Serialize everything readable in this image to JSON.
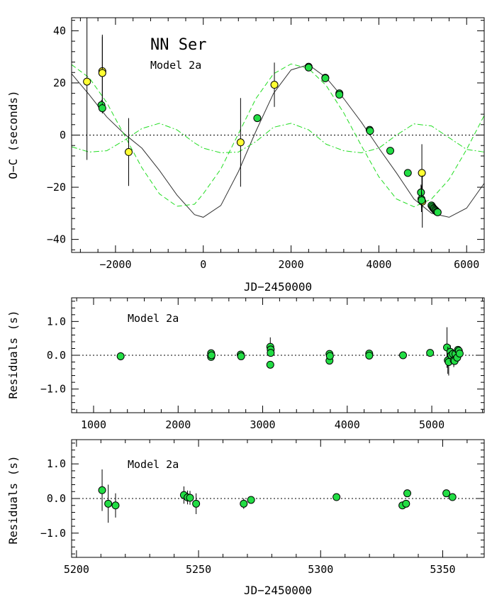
{
  "chart_data": [
    {
      "type": "scatter",
      "annotations": [
        "NN Ser",
        "Model 2a"
      ],
      "xlabel": "JD−2450000",
      "ylabel": "O−C (seconds)",
      "xlim": [
        -3000,
        6400
      ],
      "ylim": [
        -45,
        45
      ],
      "xticks": [
        -2000,
        0,
        2000,
        4000,
        6000
      ],
      "yticks": [
        -40,
        -20,
        0,
        20,
        40
      ],
      "zero_line": "dotted",
      "colors": {
        "green": "#22dd44",
        "yellow": "#ffff33",
        "fit": "#333333",
        "component": "#22dd22"
      },
      "series": [
        {
          "marker": "yellow-circle",
          "x": [
            -2650,
            -2300,
            -2300,
            -1700,
            850,
            1620,
            4980,
            4990
          ],
          "y": [
            20.5,
            24.5,
            23.8,
            -6.5,
            -2.8,
            19.3,
            -14.5,
            -25.5
          ],
          "err": [
            30,
            14,
            14,
            13,
            17,
            8.5,
            11,
            10
          ]
        },
        {
          "marker": "green-circle",
          "x": [
            -2320,
            -2300,
            1230,
            2400,
            2400,
            2780,
            2780,
            3100,
            3100,
            3790,
            3800,
            4260,
            4660,
            4960,
            4970,
            4975,
            5200,
            5220,
            5240,
            5260,
            5280,
            5300,
            5320,
            5340
          ],
          "y": [
            11.5,
            10.3,
            6.5,
            26.2,
            25.9,
            22.0,
            21.8,
            16.0,
            15.5,
            2.0,
            1.6,
            -6.0,
            -14.5,
            -22.0,
            -24.5,
            -25.0,
            -27.0,
            -27.5,
            -28.0,
            -28.3,
            -28.7,
            -29.0,
            -29.4,
            -29.6
          ],
          "err": [
            2,
            2,
            1,
            1,
            1,
            1,
            1,
            1,
            1,
            1,
            1,
            1,
            1,
            3,
            5,
            3,
            1,
            1,
            1,
            1,
            1,
            1,
            1,
            1
          ]
        }
      ],
      "model_curves": [
        {
          "style": "solid",
          "meaning": "total fit",
          "x": [
            -3000,
            -2600,
            -2200,
            -1800,
            -1400,
            -1000,
            -600,
            -200,
            0,
            400,
            800,
            1200,
            1600,
            2000,
            2400,
            2800,
            3200,
            3600,
            4000,
            4400,
            4800,
            5200,
            5600,
            6000,
            6400
          ],
          "y": [
            23.5,
            15.5,
            7.0,
            0.5,
            -5.0,
            -13.5,
            -23.0,
            -30.5,
            -31.5,
            -27.0,
            -14.0,
            1.5,
            16.0,
            25.0,
            27.0,
            22.0,
            14.0,
            5.0,
            -5.0,
            -14.5,
            -24.5,
            -30.0,
            -31.5,
            -28.0,
            -18.5
          ]
        },
        {
          "style": "dashed",
          "meaning": "component 1",
          "x": [
            -3000,
            -2600,
            -2200,
            -1800,
            -1400,
            -1000,
            -600,
            -200,
            0,
            400,
            800,
            1200,
            1600,
            2000,
            2400,
            2800,
            3200,
            3600,
            4000,
            4400,
            4800,
            5200,
            5600,
            6000,
            6400
          ],
          "y": [
            27.0,
            22.0,
            12.5,
            0.0,
            -12.5,
            -22.5,
            -27.3,
            -26.5,
            -22.5,
            -13.0,
            0.5,
            14.0,
            23.5,
            27.3,
            25.5,
            19.0,
            8.5,
            -4.0,
            -16.0,
            -24.5,
            -27.5,
            -24.5,
            -17.0,
            -5.5,
            7.5
          ]
        },
        {
          "style": "dash-dot",
          "meaning": "component 2",
          "x": [
            -3000,
            -2600,
            -2200,
            -1800,
            -1400,
            -1000,
            -600,
            -200,
            0,
            400,
            800,
            1200,
            1600,
            2000,
            2400,
            2800,
            3200,
            3600,
            4000,
            4400,
            4800,
            5200,
            5600,
            6000,
            6400
          ],
          "y": [
            -4.5,
            -6.5,
            -6.0,
            -2.0,
            2.5,
            4.5,
            2.0,
            -3.0,
            -5.0,
            -6.8,
            -6.5,
            -2.5,
            3.0,
            4.5,
            2.0,
            -3.5,
            -6.0,
            -6.8,
            -5.0,
            0.0,
            4.3,
            3.5,
            -1.0,
            -5.5,
            -6.5
          ]
        }
      ]
    },
    {
      "type": "scatter",
      "annotations": [
        "Model 2a"
      ],
      "xlabel": "",
      "ylabel": "Residuals (s)",
      "xlim": [
        740,
        5620
      ],
      "ylim": [
        -1.7,
        1.7
      ],
      "xticks": [
        1000,
        2000,
        3000,
        4000,
        5000
      ],
      "yticks": [
        -1.0,
        0.0,
        1.0
      ],
      "ytick_labels": [
        "−1.0",
        "0.0",
        "1.0"
      ],
      "zero_line": "dotted",
      "series": [
        {
          "marker": "green-circle",
          "x": [
            1320,
            2390,
            2390,
            2395,
            2740,
            2745,
            3090,
            3095,
            3095,
            3090,
            3790,
            3790,
            3795,
            4260,
            4260,
            4660,
            4980,
            5180,
            5190,
            5200,
            5220,
            5230,
            5250,
            5260,
            5270,
            5280,
            5300,
            5310,
            5320,
            5330
          ],
          "y": [
            -0.03,
            0.06,
            -0.05,
            0.0,
            0.02,
            -0.03,
            0.25,
            0.17,
            0.07,
            -0.28,
            0.04,
            -0.16,
            -0.02,
            0.05,
            -0.01,
            0.0,
            0.07,
            0.23,
            -0.15,
            -0.2,
            0.1,
            0.0,
            0.04,
            -0.15,
            -0.17,
            0.04,
            -0.07,
            0.16,
            0.13,
            0.05
          ],
          "err": [
            0.12,
            0.06,
            0.06,
            0.06,
            0.06,
            0.06,
            0.28,
            0.1,
            0.1,
            0.1,
            0.08,
            0.08,
            0.08,
            0.06,
            0.06,
            0.04,
            0.06,
            0.6,
            0.4,
            0.4,
            0.2,
            0.15,
            0.15,
            0.2,
            0.1,
            0.1,
            0.1,
            0.1,
            0.1,
            0.1
          ]
        }
      ]
    },
    {
      "type": "scatter",
      "annotations": [
        "Model 2a"
      ],
      "xlabel": "JD−2450000",
      "ylabel": "Residuals (s)",
      "xlim": [
        5198,
        5367
      ],
      "ylim": [
        -1.7,
        1.7
      ],
      "xticks": [
        5200,
        5250,
        5300,
        5350
      ],
      "yticks": [
        -1.0,
        0.0,
        1.0
      ],
      "ytick_labels": [
        "−1.0",
        "0.0",
        "1.0"
      ],
      "zero_line": "dotted",
      "series": [
        {
          "marker": "green-circle",
          "x": [
            5210.5,
            5213.0,
            5216.0,
            5244.0,
            5245.5,
            5246.5,
            5249.0,
            5268.5,
            5271.5,
            5306.5,
            5333.5,
            5335.0,
            5335.5,
            5351.5,
            5354.0
          ],
          "y": [
            0.24,
            -0.15,
            -0.2,
            0.1,
            0.03,
            0.02,
            -0.15,
            -0.15,
            -0.04,
            0.04,
            -0.2,
            -0.15,
            0.15,
            0.15,
            0.04
          ],
          "err": [
            0.6,
            0.55,
            0.35,
            0.25,
            0.2,
            0.2,
            0.3,
            0.15,
            0.1,
            0.08,
            0.1,
            0.1,
            0.1,
            0.1,
            0.08
          ]
        }
      ]
    }
  ]
}
